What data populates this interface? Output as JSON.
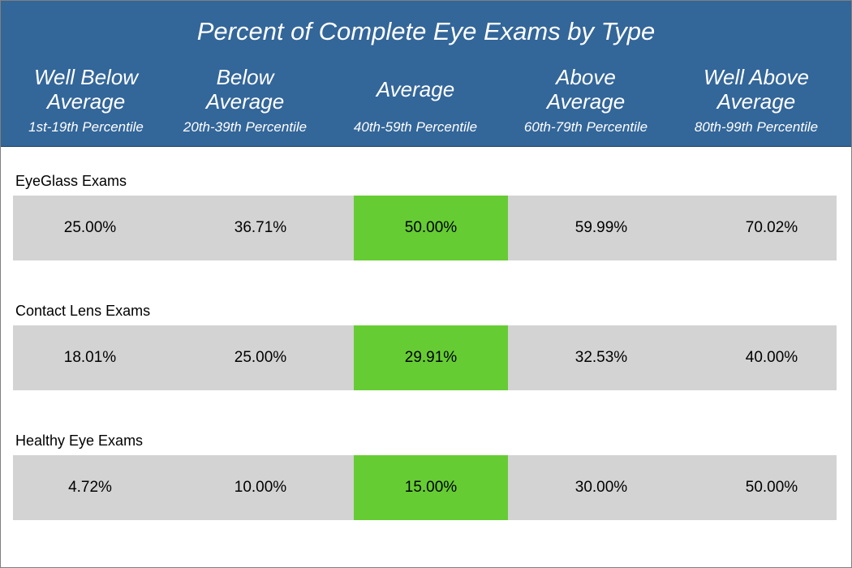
{
  "chart_data": {
    "type": "table",
    "title": "Percent of Complete Eye Exams by Type",
    "columns": [
      {
        "name": "Well Below\nAverage",
        "range": "1st-19th Percentile"
      },
      {
        "name": "Below\nAverage",
        "range": "20th-39th Percentile"
      },
      {
        "name": "Average",
        "range": "40th-59th Percentile"
      },
      {
        "name": "Above\nAverage",
        "range": "60th-79th Percentile"
      },
      {
        "name": "Well Above\nAverage",
        "range": "80th-99th Percentile"
      }
    ],
    "highlight_column": 2,
    "series": [
      {
        "name": "EyeGlass Exams",
        "values": [
          "25.00%",
          "36.71%",
          "50.00%",
          "59.99%",
          "70.02%"
        ]
      },
      {
        "name": "Contact Lens Exams",
        "values": [
          "18.01%",
          "25.00%",
          "29.91%",
          "32.53%",
          "40.00%"
        ]
      },
      {
        "name": "Healthy Eye Exams",
        "values": [
          "4.72%",
          "10.00%",
          "15.00%",
          "30.00%",
          "50.00%"
        ]
      }
    ]
  },
  "colors": {
    "header_bg": "#336699",
    "header_text": "#ffffff",
    "band_bg": "#d3d3d3",
    "highlight": "#66cc33"
  }
}
